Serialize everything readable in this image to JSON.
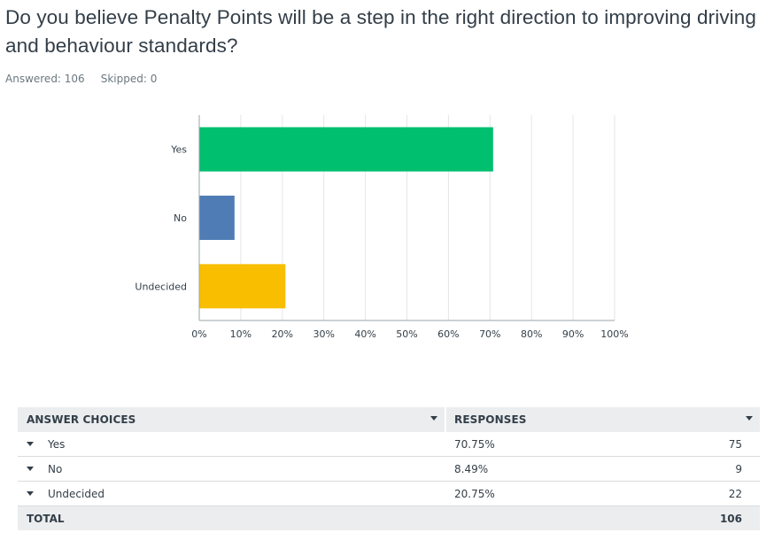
{
  "question": {
    "title": "Do you believe Penalty Points will be a step in the right direction to improving driving and behaviour standards?",
    "answered_label": "Answered: 106",
    "skipped_label": "Skipped: 0"
  },
  "chart_data": {
    "type": "bar",
    "orientation": "horizontal",
    "categories": [
      "Yes",
      "No",
      "Undecided"
    ],
    "values": [
      70.75,
      8.49,
      20.75
    ],
    "colors": [
      "#00bf6f",
      "#507cb6",
      "#f9be00"
    ],
    "xlim": [
      0,
      100
    ],
    "x_ticks": [
      "0%",
      "10%",
      "20%",
      "30%",
      "40%",
      "50%",
      "60%",
      "70%",
      "80%",
      "90%",
      "100%"
    ],
    "grid": true
  },
  "table": {
    "headers": [
      "ANSWER CHOICES",
      "RESPONSES"
    ],
    "rows": [
      {
        "choice": "Yes",
        "percent": "70.75%",
        "count": "75"
      },
      {
        "choice": "No",
        "percent": "8.49%",
        "count": "9"
      },
      {
        "choice": "Undecided",
        "percent": "20.75%",
        "count": "22"
      }
    ],
    "total_label": "TOTAL",
    "total_count": "106"
  }
}
